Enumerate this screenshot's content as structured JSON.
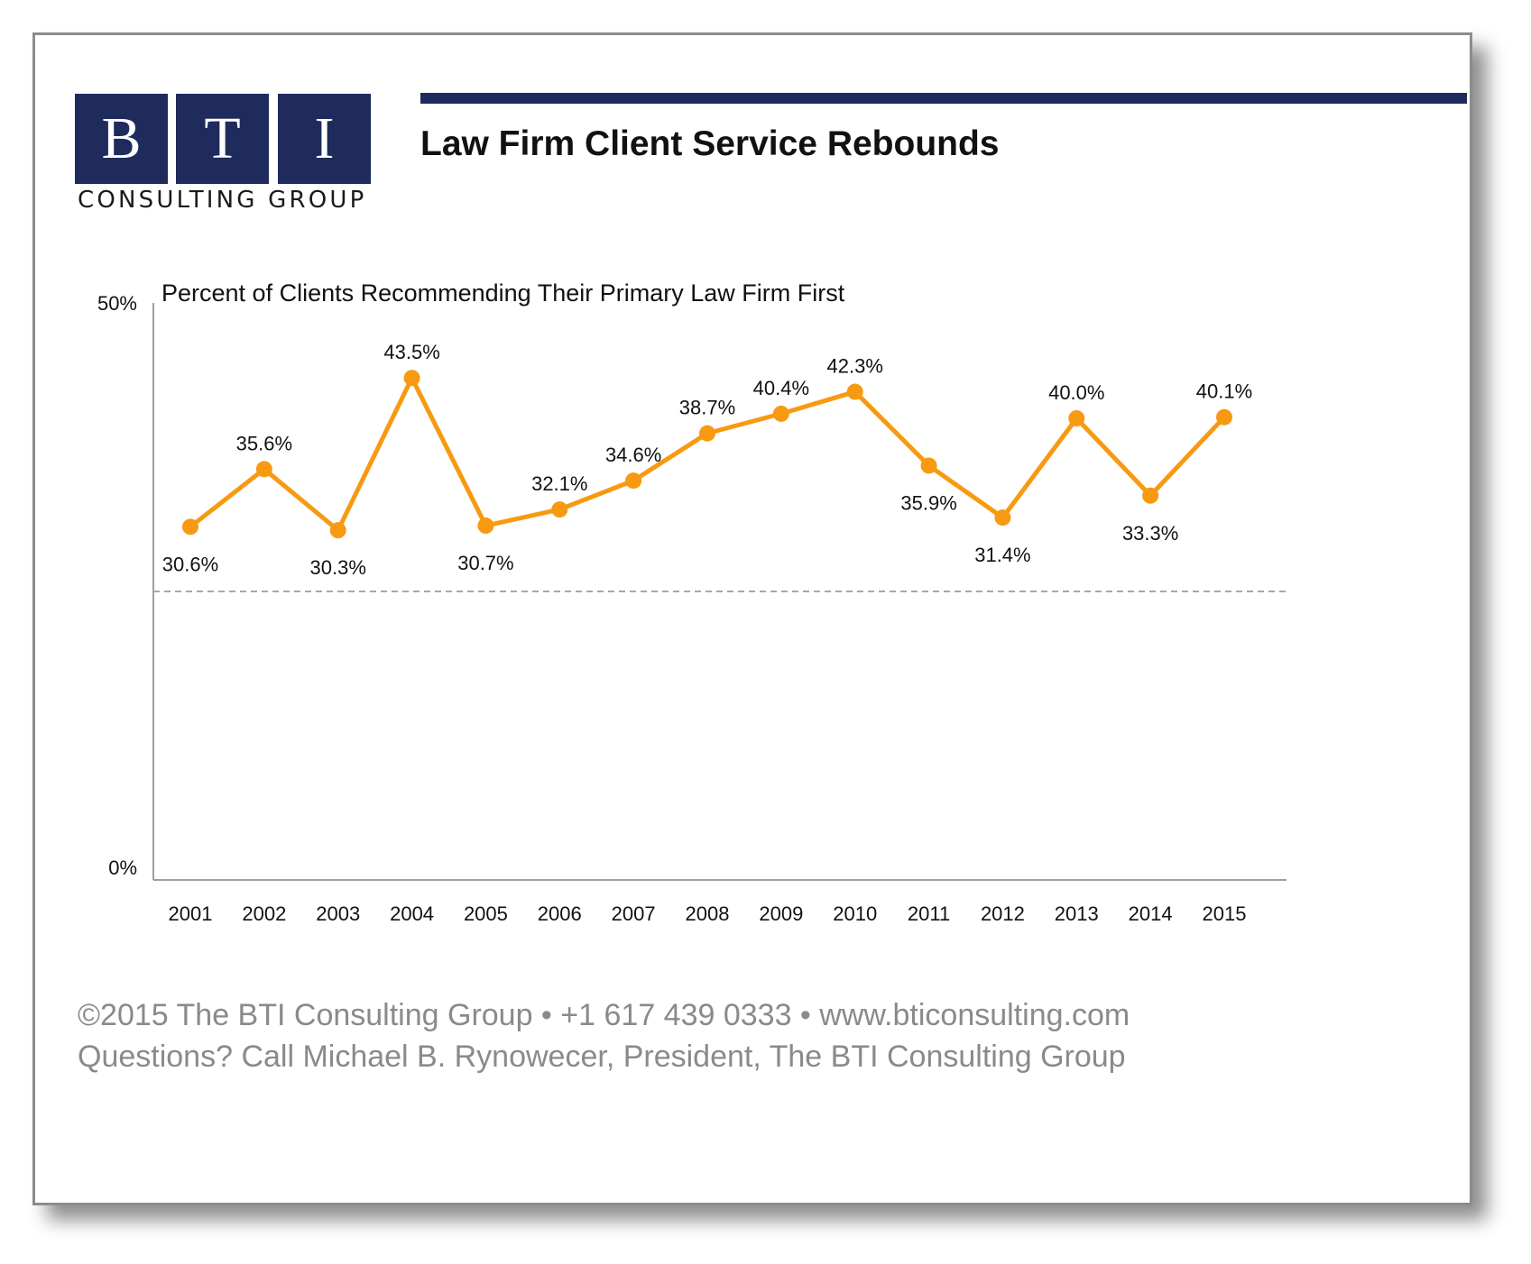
{
  "logo": {
    "letters": [
      "B",
      "T",
      "I"
    ],
    "subtitle": "CONSULTING GROUP"
  },
  "title": "Law Firm Client Service Rebounds",
  "chart_data": {
    "type": "line",
    "subtitle": "Percent of Clients Recommending Their Primary Law Firm First",
    "categories": [
      "2001",
      "2002",
      "2003",
      "2004",
      "2005",
      "2006",
      "2007",
      "2008",
      "2009",
      "2010",
      "2011",
      "2012",
      "2013",
      "2014",
      "2015"
    ],
    "series": [
      {
        "values": [
          30.6,
          35.6,
          30.3,
          43.5,
          30.7,
          32.1,
          34.6,
          38.7,
          40.4,
          42.3,
          35.9,
          31.4,
          40.0,
          33.3,
          40.1
        ]
      }
    ],
    "data_labels": [
      "30.6%",
      "35.6%",
      "30.3%",
      "43.5%",
      "30.7%",
      "32.1%",
      "34.6%",
      "38.7%",
      "40.4%",
      "42.3%",
      "35.9%",
      "31.4%",
      "40.0%",
      "33.3%",
      "40.1%"
    ],
    "label_position": [
      "below",
      "above",
      "below",
      "above",
      "below",
      "above",
      "above",
      "above",
      "above",
      "above",
      "below",
      "below",
      "above",
      "below",
      "above"
    ],
    "y_ticks": [
      {
        "value": 0,
        "label": "0%"
      },
      {
        "value": 50,
        "label": "50%"
      }
    ],
    "ylim": [
      0,
      50
    ],
    "reference_line": 25,
    "grid": false,
    "colors": {
      "line": "#F79A12",
      "reference": "#a8a8a8",
      "axis": "#a0a0a0"
    }
  },
  "footer": {
    "line1": "©2015 The BTI Consulting Group  •  +1 617 439 0333  •  www.bticonsulting.com",
    "line2": "Questions? Call Michael B. Rynowecer, President, The BTI Consulting Group"
  }
}
